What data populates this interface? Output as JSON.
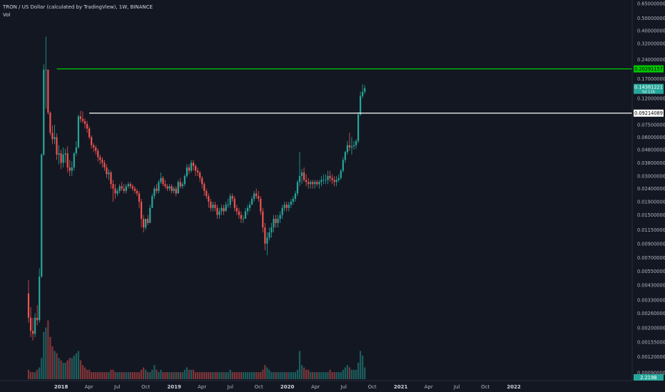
{
  "header": {
    "title": "TRON / US Dollar (calculated by TradingView), 1W, BINANCE",
    "volume_label": "Vol"
  },
  "colors": {
    "background": "#131722",
    "up": "#26a69a",
    "down": "#ef5350",
    "resistance_line": "#00c800",
    "support_line": "#ffffff",
    "axis_text": "#b2b5be"
  },
  "chart_data": {
    "type": "candlestick",
    "scale": "log",
    "y_ticks": [
      "0.65000000",
      "0.50000000",
      "0.40000000",
      "0.32000000",
      "0.24000000",
      "0.17000000",
      "0.12000000",
      "0.07500000",
      "0.06000000",
      "0.04800000",
      "0.03800000",
      "0.03000000",
      "0.02400000",
      "0.01900000",
      "0.01500000",
      "0.01150000",
      "0.00900000",
      "0.00700000",
      "0.00550000",
      "0.00430000",
      "0.00330000",
      "0.00260000",
      "0.00200000",
      "0.00155000",
      "0.00120000",
      "0.00090000"
    ],
    "x_ticks": [
      "2018",
      "Apr",
      "Jul",
      "Oct",
      "2019",
      "Apr",
      "Jul",
      "Oct",
      "2020",
      "Apr",
      "Jul",
      "Oct",
      "2021",
      "Apr",
      "Jul",
      "Oct",
      "2022"
    ],
    "levels": [
      {
        "label": "0.20291157",
        "value": 0.20291157,
        "color": "#00c800",
        "from": "2017-12-18"
      },
      {
        "label": "0.09214089",
        "value": 0.09214089,
        "color": "#ffffff",
        "from": "2018-04-02"
      }
    ],
    "last_price": {
      "label": "0.14381221",
      "value": 0.14381221,
      "countdown": "5d 11h"
    },
    "volume_badge": "2.219B",
    "series": {
      "open": [
        0.0037,
        0.0024,
        0.0019,
        0.0018,
        0.0024,
        0.0023,
        0.005,
        0.044,
        0.2,
        0.2,
        0.093,
        0.065,
        0.058,
        0.06,
        0.044,
        0.045,
        0.038,
        0.044,
        0.045,
        0.035,
        0.033,
        0.035,
        0.045,
        0.05,
        0.087,
        0.083,
        0.08,
        0.076,
        0.07,
        0.06,
        0.052,
        0.05,
        0.047,
        0.042,
        0.04,
        0.038,
        0.035,
        0.031,
        0.032,
        0.026,
        0.024,
        0.022,
        0.023,
        0.025,
        0.024,
        0.023,
        0.025,
        0.026,
        0.025,
        0.024,
        0.023,
        0.022,
        0.019,
        0.014,
        0.012,
        0.014,
        0.013,
        0.017,
        0.021,
        0.024,
        0.023,
        0.027,
        0.029,
        0.026,
        0.025,
        0.024,
        0.025,
        0.023,
        0.024,
        0.022,
        0.027,
        0.025,
        0.026,
        0.03,
        0.035,
        0.033,
        0.038,
        0.036,
        0.033,
        0.032,
        0.029,
        0.026,
        0.023,
        0.021,
        0.019,
        0.017,
        0.018,
        0.017,
        0.015,
        0.016,
        0.017,
        0.016,
        0.018,
        0.018,
        0.021,
        0.02,
        0.017,
        0.016,
        0.015,
        0.014,
        0.014,
        0.016,
        0.017,
        0.018,
        0.02,
        0.022,
        0.021,
        0.02,
        0.016,
        0.012,
        0.009,
        0.01,
        0.011,
        0.012,
        0.014,
        0.013,
        0.014,
        0.015,
        0.017,
        0.018,
        0.017,
        0.018,
        0.019,
        0.02,
        0.022,
        0.027,
        0.03,
        0.032,
        0.028,
        0.027,
        0.026,
        0.027,
        0.026,
        0.027,
        0.026,
        0.027,
        0.028,
        0.028,
        0.028,
        0.03,
        0.029,
        0.028,
        0.027,
        0.028,
        0.029,
        0.033,
        0.04,
        0.046,
        0.052,
        0.05,
        0.051,
        0.052,
        0.056,
        0.09,
        0.125,
        0.135
      ],
      "high": [
        0.0047,
        0.0029,
        0.0024,
        0.0026,
        0.003,
        0.0058,
        0.045,
        0.22,
        0.36,
        0.2,
        0.095,
        0.074,
        0.075,
        0.064,
        0.052,
        0.048,
        0.05,
        0.049,
        0.051,
        0.04,
        0.039,
        0.046,
        0.056,
        0.09,
        0.096,
        0.095,
        0.084,
        0.08,
        0.073,
        0.062,
        0.054,
        0.052,
        0.049,
        0.044,
        0.042,
        0.04,
        0.037,
        0.034,
        0.033,
        0.028,
        0.026,
        0.024,
        0.026,
        0.027,
        0.026,
        0.026,
        0.027,
        0.027,
        0.026,
        0.025,
        0.024,
        0.023,
        0.02,
        0.015,
        0.014,
        0.015,
        0.018,
        0.022,
        0.025,
        0.026,
        0.028,
        0.032,
        0.03,
        0.028,
        0.026,
        0.026,
        0.026,
        0.025,
        0.025,
        0.028,
        0.029,
        0.027,
        0.031,
        0.037,
        0.037,
        0.04,
        0.04,
        0.037,
        0.035,
        0.033,
        0.03,
        0.027,
        0.024,
        0.022,
        0.02,
        0.019,
        0.019,
        0.018,
        0.017,
        0.018,
        0.018,
        0.019,
        0.02,
        0.022,
        0.022,
        0.021,
        0.018,
        0.017,
        0.016,
        0.015,
        0.017,
        0.018,
        0.019,
        0.021,
        0.023,
        0.024,
        0.023,
        0.021,
        0.017,
        0.013,
        0.011,
        0.012,
        0.013,
        0.015,
        0.015,
        0.015,
        0.016,
        0.018,
        0.019,
        0.019,
        0.019,
        0.02,
        0.021,
        0.023,
        0.028,
        0.046,
        0.034,
        0.035,
        0.031,
        0.029,
        0.028,
        0.028,
        0.028,
        0.028,
        0.028,
        0.03,
        0.031,
        0.031,
        0.033,
        0.033,
        0.031,
        0.03,
        0.03,
        0.031,
        0.034,
        0.042,
        0.047,
        0.056,
        0.065,
        0.06,
        0.056,
        0.058,
        0.094,
        0.135,
        0.154,
        0.152
      ],
      "low": [
        0.0022,
        0.0017,
        0.0016,
        0.0017,
        0.0021,
        0.0022,
        0.0049,
        0.043,
        0.1,
        0.09,
        0.062,
        0.053,
        0.053,
        0.04,
        0.037,
        0.034,
        0.035,
        0.038,
        0.032,
        0.03,
        0.03,
        0.033,
        0.043,
        0.049,
        0.078,
        0.077,
        0.07,
        0.065,
        0.058,
        0.049,
        0.046,
        0.044,
        0.039,
        0.037,
        0.035,
        0.033,
        0.029,
        0.028,
        0.024,
        0.019,
        0.02,
        0.021,
        0.022,
        0.023,
        0.022,
        0.022,
        0.024,
        0.024,
        0.023,
        0.022,
        0.021,
        0.017,
        0.012,
        0.011,
        0.0115,
        0.0125,
        0.013,
        0.017,
        0.02,
        0.022,
        0.022,
        0.026,
        0.025,
        0.024,
        0.023,
        0.023,
        0.022,
        0.022,
        0.021,
        0.022,
        0.024,
        0.024,
        0.025,
        0.029,
        0.031,
        0.032,
        0.033,
        0.03,
        0.03,
        0.027,
        0.024,
        0.021,
        0.02,
        0.017,
        0.016,
        0.016,
        0.016,
        0.014,
        0.014,
        0.015,
        0.015,
        0.016,
        0.017,
        0.017,
        0.019,
        0.016,
        0.015,
        0.014,
        0.013,
        0.013,
        0.014,
        0.015,
        0.016,
        0.018,
        0.019,
        0.02,
        0.019,
        0.015,
        0.011,
        0.008,
        0.0073,
        0.0095,
        0.01,
        0.011,
        0.012,
        0.012,
        0.013,
        0.014,
        0.016,
        0.016,
        0.016,
        0.017,
        0.018,
        0.019,
        0.021,
        0.025,
        0.026,
        0.027,
        0.025,
        0.024,
        0.024,
        0.024,
        0.024,
        0.025,
        0.024,
        0.025,
        0.026,
        0.026,
        0.026,
        0.027,
        0.026,
        0.025,
        0.025,
        0.027,
        0.028,
        0.032,
        0.038,
        0.044,
        0.047,
        0.044,
        0.048,
        0.049,
        0.054,
        0.088,
        0.12,
        0.13
      ],
      "close": [
        0.0024,
        0.0019,
        0.0018,
        0.0024,
        0.0023,
        0.005,
        0.044,
        0.2,
        0.2,
        0.093,
        0.065,
        0.058,
        0.06,
        0.044,
        0.045,
        0.038,
        0.044,
        0.045,
        0.035,
        0.033,
        0.035,
        0.045,
        0.05,
        0.087,
        0.083,
        0.08,
        0.076,
        0.07,
        0.06,
        0.052,
        0.05,
        0.047,
        0.042,
        0.04,
        0.038,
        0.035,
        0.031,
        0.032,
        0.026,
        0.024,
        0.022,
        0.023,
        0.025,
        0.024,
        0.023,
        0.025,
        0.026,
        0.025,
        0.024,
        0.023,
        0.022,
        0.019,
        0.014,
        0.012,
        0.014,
        0.013,
        0.017,
        0.021,
        0.024,
        0.023,
        0.027,
        0.029,
        0.026,
        0.025,
        0.024,
        0.025,
        0.023,
        0.024,
        0.022,
        0.027,
        0.025,
        0.026,
        0.03,
        0.035,
        0.033,
        0.038,
        0.036,
        0.033,
        0.032,
        0.029,
        0.026,
        0.023,
        0.021,
        0.019,
        0.017,
        0.018,
        0.017,
        0.015,
        0.016,
        0.017,
        0.016,
        0.018,
        0.018,
        0.021,
        0.02,
        0.017,
        0.016,
        0.015,
        0.014,
        0.014,
        0.016,
        0.017,
        0.018,
        0.02,
        0.022,
        0.021,
        0.02,
        0.016,
        0.012,
        0.009,
        0.01,
        0.011,
        0.012,
        0.014,
        0.013,
        0.014,
        0.015,
        0.017,
        0.018,
        0.017,
        0.018,
        0.019,
        0.02,
        0.022,
        0.027,
        0.03,
        0.032,
        0.028,
        0.027,
        0.026,
        0.027,
        0.026,
        0.027,
        0.026,
        0.027,
        0.028,
        0.028,
        0.028,
        0.03,
        0.029,
        0.028,
        0.027,
        0.028,
        0.029,
        0.033,
        0.04,
        0.046,
        0.052,
        0.05,
        0.051,
        0.052,
        0.056,
        0.09,
        0.125,
        0.135,
        0.1438
      ],
      "volume": [
        4,
        3,
        3,
        3,
        4,
        5,
        9,
        20,
        22,
        25,
        18,
        14,
        12,
        11,
        9,
        8,
        7,
        7,
        8,
        9,
        9,
        10,
        11,
        12,
        8,
        6,
        5,
        4,
        4,
        3,
        3,
        3,
        3,
        3,
        3,
        3,
        3,
        3,
        4,
        4,
        3,
        3,
        3,
        3,
        3,
        3,
        3,
        3,
        3,
        3,
        3,
        3,
        4,
        5,
        4,
        3,
        3,
        4,
        6,
        4,
        3,
        4,
        3,
        3,
        3,
        3,
        3,
        3,
        3,
        3,
        3,
        3,
        4,
        5,
        4,
        4,
        4,
        3,
        3,
        3,
        3,
        3,
        3,
        3,
        3,
        3,
        3,
        3,
        3,
        3,
        3,
        3,
        3,
        4,
        3,
        3,
        3,
        3,
        3,
        3,
        3,
        3,
        3,
        3,
        3,
        3,
        3,
        3,
        4,
        6,
        5,
        4,
        3,
        3,
        3,
        3,
        3,
        3,
        3,
        3,
        3,
        3,
        3,
        3,
        4,
        12,
        6,
        5,
        4,
        4,
        3,
        3,
        3,
        3,
        3,
        3,
        3,
        3,
        3,
        4,
        3,
        3,
        3,
        3,
        3,
        4,
        5,
        6,
        5,
        4,
        4,
        4,
        7,
        12,
        10,
        5
      ]
    }
  }
}
